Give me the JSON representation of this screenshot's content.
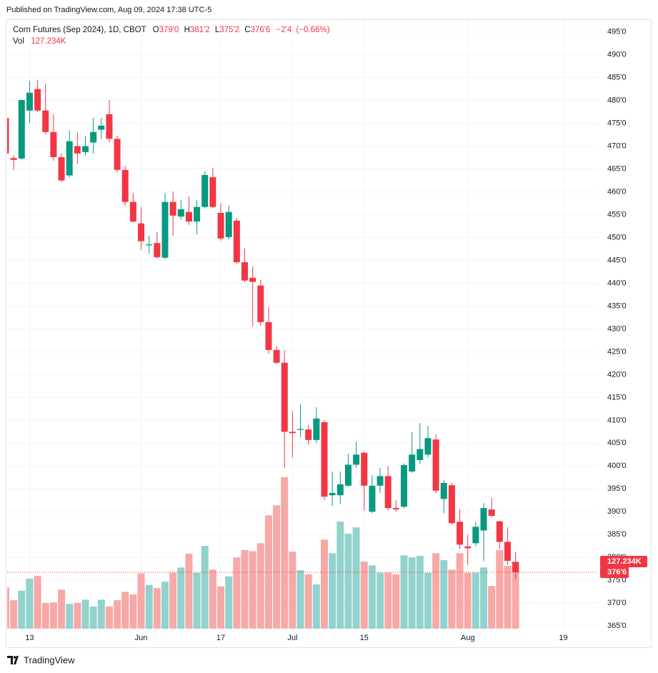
{
  "published": "Published on TradingView.com, Aug 09, 2024 17:38 UTC-5",
  "footer": "TradingView",
  "chart_data": {
    "type": "candlestick",
    "title": "Corn Futures (Sep 2024), 1D, CBOT",
    "legend_keys": {
      "open": "O",
      "high": "H",
      "low": "L",
      "close": "C",
      "volume": "Vol"
    },
    "legend": {
      "open": {
        "value": 379,
        "label": "379'0"
      },
      "high": {
        "value": 381.25,
        "label": "381'2"
      },
      "low": {
        "value": 375.25,
        "label": "375'2"
      },
      "close": {
        "value": 376.75,
        "label": "376'6"
      },
      "change": {
        "value": -2.5,
        "label": "−2'4"
      },
      "change_pct": {
        "value": -0.66,
        "label": "(−0.66%)"
      }
    },
    "last_price": {
      "value": 376.75,
      "label": "376'6"
    },
    "last_volume": {
      "value": 127234,
      "label": "127.234K"
    },
    "up_color": "#089981",
    "down_color": "#f23645",
    "volume_up_color": "#92d2cc",
    "volume_down_color": "#f7a9a7",
    "grid": true,
    "categories": [
      null,
      null,
      null,
      "13",
      null,
      null,
      null,
      null,
      null,
      null,
      null,
      null,
      null,
      null,
      null,
      null,
      null,
      "Jun",
      null,
      null,
      null,
      null,
      null,
      null,
      null,
      null,
      null,
      "17",
      null,
      null,
      null,
      null,
      null,
      null,
      null,
      null,
      "Jul",
      null,
      null,
      null,
      null,
      null,
      null,
      null,
      null,
      "15",
      null,
      null,
      null,
      null,
      null,
      null,
      null,
      null,
      null,
      null,
      null,
      null,
      "Aug",
      null,
      null,
      null,
      null,
      null,
      null,
      null,
      null,
      null,
      null,
      null,
      "19"
    ],
    "open": [
      476.2,
      467.4,
      467.3,
      477.8,
      482.5,
      477.8,
      473.1,
      467.6,
      463.6,
      470.0,
      468.7,
      470.8,
      473.6,
      477.0,
      471.6,
      464.8,
      457.8,
      453.1,
      448.3,
      448.8,
      445.6,
      457.8,
      454.6,
      455.6,
      453.5,
      456.7,
      463.2,
      455.4,
      450.1,
      453.7,
      444.6,
      441.2,
      439.5,
      431.5,
      425.4,
      422.6,
      407.5,
      407.9,
      408.0,
      405.7,
      409.6,
      393.6,
      393.6,
      395.7,
      400.3,
      402.9,
      390.0,
      395.7,
      397.8,
      390.8,
      391.1,
      398.8,
      401.3,
      402.5,
      405.8,
      392.8,
      395.8,
      387.8,
      382.4,
      383.1,
      385.9,
      390.5,
      387.9,
      383.4,
      379,
      null,
      null,
      null,
      null,
      null,
      null
    ],
    "high": [
      476.5,
      468,
      480.3,
      484.3,
      484.5,
      483.6,
      477.0,
      468.4,
      473.4,
      473.1,
      472.3,
      476.2,
      476.2,
      480.1,
      472.3,
      465.7,
      459.8,
      456.7,
      450.4,
      451.2,
      459.8,
      460.1,
      458.2,
      459.0,
      458.2,
      464.5,
      465.3,
      457.5,
      457.0,
      454.3,
      447.6,
      443.7,
      440.8,
      434.8,
      426.2,
      425.4,
      412.0,
      413.6,
      409.0,
      412.9,
      410.1,
      398.8,
      398.8,
      402.7,
      405.3,
      403.2,
      398.0,
      399.6,
      400.0,
      392.5,
      400.6,
      407.4,
      409.4,
      408.8,
      406.9,
      396.9,
      396.3,
      390.6,
      385.0,
      387.8,
      391.9,
      393.0,
      388.0,
      386.6,
      381.25,
      null,
      null,
      null,
      null,
      null,
      null
    ],
    "low": [
      467,
      464.8,
      467.0,
      475.0,
      477.5,
      472.6,
      466.8,
      462.1,
      463.2,
      466.1,
      467.9,
      468.4,
      471.6,
      470.8,
      464.2,
      457.0,
      453.2,
      447.3,
      446.5,
      445.4,
      445.2,
      450.4,
      453.9,
      452.8,
      450.7,
      456.4,
      456.4,
      449.3,
      449.6,
      444.2,
      440.2,
      430.6,
      430.7,
      424.6,
      422.3,
      399.6,
      401.9,
      406.3,
      404.7,
      405.0,
      392.5,
      391.3,
      391.7,
      395.4,
      399.6,
      390.2,
      389.7,
      394.1,
      390.3,
      390.0,
      390.8,
      398.5,
      400.5,
      401.9,
      394.1,
      389.7,
      387.2,
      381.9,
      378.4,
      382.4,
      379.2,
      388.8,
      381.9,
      378.4,
      375.25,
      null,
      null,
      null,
      null,
      null,
      null
    ],
    "close": [
      468.4,
      467.0,
      480.1,
      481.7,
      477.8,
      473.1,
      467.6,
      462.5,
      471.1,
      468.4,
      470.0,
      473.1,
      474.5,
      471.6,
      464.8,
      457.8,
      453.5,
      449.2,
      448.5,
      445.7,
      457.8,
      454.8,
      456.2,
      453.5,
      456.7,
      463.7,
      456.7,
      449.8,
      455.6,
      444.6,
      440.6,
      440.3,
      431.5,
      425.4,
      422.6,
      407.5,
      407.2,
      408.1,
      405.7,
      410.4,
      393.3,
      394.1,
      396.0,
      400.3,
      402.5,
      395.7,
      395.7,
      397.8,
      390.8,
      390.5,
      400.2,
      402.5,
      403.7,
      406.1,
      394.6,
      396.3,
      387.5,
      382.8,
      382.0,
      386.7,
      390.8,
      389.1,
      383.4,
      379.25,
      376.75,
      null,
      null,
      null,
      null,
      null,
      null
    ],
    "volume": [
      78500,
      54000,
      72000,
      95000,
      100000,
      49000,
      50000,
      74000,
      47000,
      49000,
      55000,
      42000,
      55000,
      42000,
      54000,
      70000,
      65000,
      105000,
      83000,
      77000,
      89000,
      106000,
      116000,
      142000,
      106000,
      157000,
      112000,
      80000,
      99000,
      135000,
      149000,
      147000,
      162000,
      215000,
      234000,
      287000,
      146000,
      111000,
      103000,
      84000,
      169000,
      143000,
      203000,
      180000,
      192000,
      127000,
      120000,
      106000,
      106000,
      103000,
      139000,
      135000,
      138000,
      106000,
      143000,
      130000,
      112000,
      143000,
      106000,
      106000,
      116000,
      81000,
      149000,
      119000,
      127234,
      null,
      null,
      null,
      null,
      null,
      null
    ],
    "ylim": [
      364.4,
      497.3
    ],
    "yticks": [
      {
        "value": 365,
        "label": "365'0"
      },
      {
        "value": 370,
        "label": "370'0"
      },
      {
        "value": 375,
        "label": "375'0"
      },
      {
        "value": 380,
        "label": "380'0"
      },
      {
        "value": 385,
        "label": "385'0"
      },
      {
        "value": 390,
        "label": "390'0"
      },
      {
        "value": 395,
        "label": "395'0"
      },
      {
        "value": 400,
        "label": "400'0"
      },
      {
        "value": 405,
        "label": "405'0"
      },
      {
        "value": 410,
        "label": "410'0"
      },
      {
        "value": 415,
        "label": "415'0"
      },
      {
        "value": 420,
        "label": "420'0"
      },
      {
        "value": 425,
        "label": "425'0"
      },
      {
        "value": 430,
        "label": "430'0"
      },
      {
        "value": 435,
        "label": "435'0"
      },
      {
        "value": 440,
        "label": "440'0"
      },
      {
        "value": 445,
        "label": "445'0"
      },
      {
        "value": 450,
        "label": "450'0"
      },
      {
        "value": 455,
        "label": "455'0"
      },
      {
        "value": 460,
        "label": "460'0"
      },
      {
        "value": 465,
        "label": "465'0"
      },
      {
        "value": 470,
        "label": "470'0"
      },
      {
        "value": 475,
        "label": "475'0"
      },
      {
        "value": 480,
        "label": "480'0"
      },
      {
        "value": 485,
        "label": "485'0"
      },
      {
        "value": 490,
        "label": "490'0"
      },
      {
        "value": 495,
        "label": "495'0"
      }
    ]
  }
}
